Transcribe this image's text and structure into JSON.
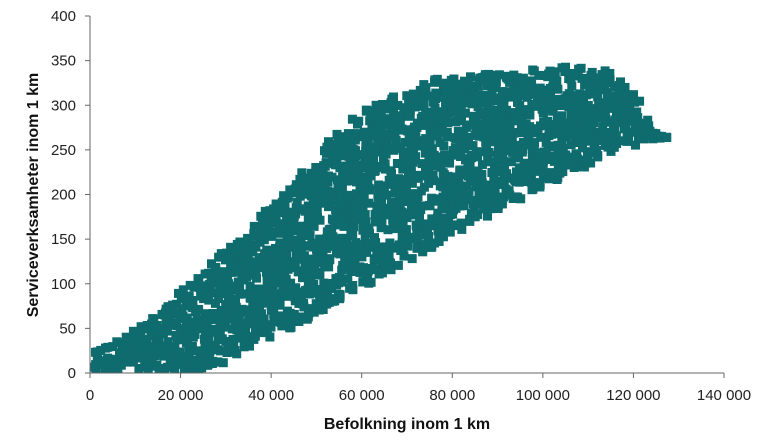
{
  "chart_data": {
    "type": "scatter",
    "title": "",
    "xlabel": "Befolkning inom 1 km",
    "ylabel": "Serviceverksamheter inom 1 km",
    "xlim": [
      0,
      140000
    ],
    "ylim": [
      0,
      400
    ],
    "x_ticks": [
      {
        "value": 0,
        "label": "0"
      },
      {
        "value": 20000,
        "label": "20 000"
      },
      {
        "value": 40000,
        "label": "40 000"
      },
      {
        "value": 60000,
        "label": "60 000"
      },
      {
        "value": 80000,
        "label": "80 000"
      },
      {
        "value": 100000,
        "label": "100 000"
      },
      {
        "value": 120000,
        "label": "120 000"
      },
      {
        "value": 140000,
        "label": "140 000"
      }
    ],
    "y_ticks": [
      {
        "value": 0,
        "label": "0"
      },
      {
        "value": 50,
        "label": "50"
      },
      {
        "value": 100,
        "label": "100"
      },
      {
        "value": 150,
        "label": "150"
      },
      {
        "value": 200,
        "label": "200"
      },
      {
        "value": 250,
        "label": "250"
      },
      {
        "value": 300,
        "label": "300"
      },
      {
        "value": 350,
        "label": "350"
      },
      {
        "value": 400,
        "label": "400"
      }
    ],
    "grid": false,
    "legend": "none",
    "marker": "square",
    "marker_color": "#0e6b6e",
    "series": [
      {
        "x": [
          0,
          1000,
          2000,
          3000,
          4000,
          5000,
          6000,
          7000,
          8000,
          9000,
          10000,
          11000,
          12000,
          13000,
          14000,
          15000,
          16000,
          17000,
          18000,
          19000,
          20000,
          21000,
          22000,
          23000,
          24000,
          25000,
          26000,
          27000,
          28000,
          29000,
          30000,
          31000,
          32000,
          33000,
          34000,
          35000,
          36000,
          37000,
          38000,
          39000,
          40000,
          41000,
          42000,
          43000,
          44000,
          45000,
          46000,
          47000,
          48000,
          49000,
          50000,
          51000,
          52000,
          53000,
          54000,
          55000,
          56000,
          57000,
          58000,
          59000,
          60000,
          61000,
          62000,
          63000,
          64000,
          65000,
          66000,
          67000,
          68000,
          69000,
          70000,
          71000,
          72000,
          73000,
          74000,
          75000,
          76000,
          77000,
          78000,
          79000,
          80000,
          81000,
          82000,
          83000,
          84000,
          85000,
          86000,
          87000,
          88000,
          89000,
          90000,
          91000,
          92000,
          93000,
          94000,
          95000,
          96000,
          97000,
          98000,
          99000,
          100000,
          101000,
          102000,
          103000,
          104000,
          105000,
          106000,
          107000,
          108000,
          109000,
          110000,
          111000,
          112000,
          113000,
          114000,
          115000,
          116000,
          117000,
          118000,
          119000,
          120000,
          121000,
          122000,
          123000,
          124000,
          125000,
          126000,
          127000
        ],
        "y_low": [
          0,
          0,
          0,
          0,
          0,
          0,
          0,
          0,
          0,
          0,
          0,
          0,
          0,
          0,
          0,
          0,
          0,
          0,
          0,
          0,
          0,
          0,
          0,
          0,
          0,
          5,
          5,
          10,
          10,
          10,
          15,
          20,
          20,
          25,
          25,
          30,
          35,
          35,
          40,
          40,
          40,
          45,
          45,
          50,
          50,
          55,
          55,
          60,
          60,
          65,
          65,
          70,
          75,
          75,
          80,
          80,
          85,
          85,
          90,
          95,
          95,
          100,
          100,
          105,
          105,
          110,
          115,
          115,
          120,
          120,
          125,
          125,
          130,
          135,
          135,
          140,
          145,
          145,
          150,
          150,
          155,
          160,
          160,
          165,
          165,
          170,
          170,
          175,
          175,
          180,
          180,
          185,
          185,
          190,
          190,
          195,
          200,
          200,
          205,
          205,
          210,
          210,
          215,
          215,
          220,
          220,
          225,
          225,
          230,
          230,
          235,
          235,
          240,
          240,
          245,
          245,
          250,
          250,
          255,
          255,
          255,
          260,
          260,
          260,
          260,
          262,
          263,
          264
        ],
        "y_high": [
          28,
          28,
          30,
          32,
          33,
          35,
          37,
          40,
          42,
          45,
          50,
          52,
          55,
          60,
          62,
          65,
          70,
          75,
          80,
          85,
          90,
          95,
          100,
          105,
          110,
          115,
          120,
          125,
          130,
          135,
          140,
          145,
          150,
          155,
          160,
          165,
          170,
          175,
          180,
          185,
          190,
          195,
          200,
          205,
          210,
          215,
          220,
          225,
          230,
          240,
          245,
          250,
          255,
          260,
          265,
          270,
          275,
          280,
          285,
          290,
          290,
          295,
          295,
          300,
          300,
          305,
          305,
          310,
          310,
          315,
          315,
          320,
          320,
          325,
          325,
          330,
          330,
          330,
          330,
          330,
          330,
          330,
          330,
          333,
          333,
          333,
          335,
          335,
          335,
          335,
          335,
          335,
          335,
          338,
          338,
          338,
          338,
          340,
          340,
          340,
          340,
          342,
          342,
          342,
          342,
          343,
          343,
          343,
          343,
          343,
          343,
          343,
          342,
          342,
          340,
          338,
          335,
          330,
          325,
          320,
          315,
          305,
          295,
          285,
          275,
          270,
          266,
          264
        ]
      }
    ]
  }
}
